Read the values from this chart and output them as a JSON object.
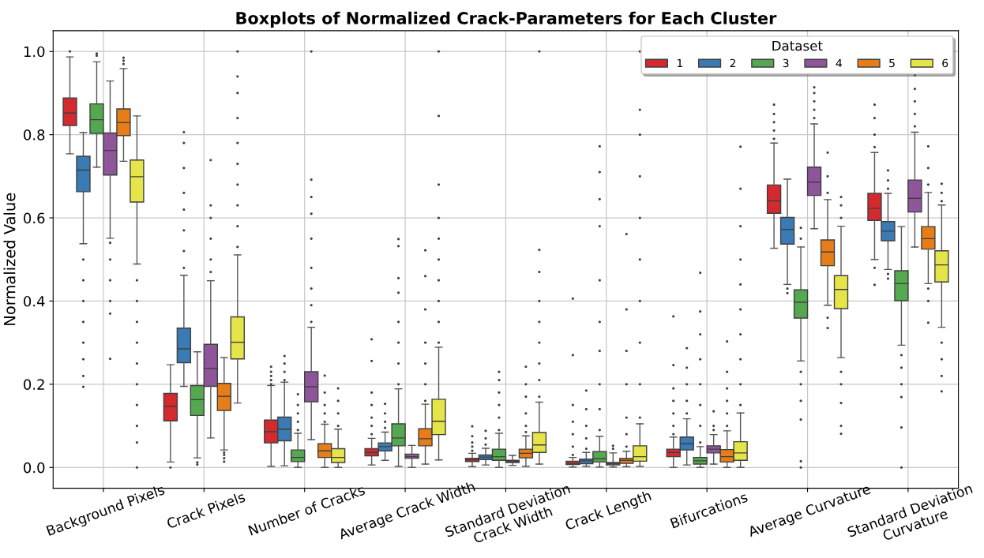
{
  "chart_data": {
    "type": "box",
    "title": "Boxplots of Normalized Crack-Parameters for Each Cluster",
    "ylabel": "Normalized Value",
    "legend_title": "Dataset",
    "categories": [
      "Background Pixels",
      "Crack Pixels",
      "Number of Cracks",
      "Average Crack Width",
      "Standard Deviation\nCrack Width",
      "Crack Length",
      "Bifurcations",
      "Average Curvature",
      "Standard Deviation\nCurvature"
    ],
    "ylim": [
      -0.05,
      1.05
    ],
    "yticks": [
      {
        "value": 0,
        "label": "0.0"
      },
      0.2,
      0.4,
      0.6,
      0.8,
      {
        "value": 1,
        "label": "1.0"
      }
    ],
    "grid": true,
    "legend": "top right",
    "series": [
      {
        "name": "1",
        "color": "#d3292f",
        "boxes": [
          {
            "low": 0.754,
            "q1": 0.822,
            "median": 0.852,
            "q3": 0.888,
            "high": 0.987,
            "outliers": [
              1.0
            ]
          },
          {
            "low": 0.013,
            "q1": 0.112,
            "median": 0.147,
            "q3": 0.178,
            "high": 0.247,
            "outliers": [
              0.0
            ]
          },
          {
            "low": 0.003,
            "q1": 0.059,
            "median": 0.086,
            "q3": 0.114,
            "high": 0.197,
            "outliers": [
              0.2,
              0.21,
              0.22,
              0.23,
              0.242
            ]
          },
          {
            "low": 0.006,
            "q1": 0.028,
            "median": 0.036,
            "q3": 0.045,
            "high": 0.07,
            "outliers": [
              0.08,
              0.1,
              0.12,
              0.15,
              0.18,
              0.256,
              0.308
            ]
          },
          {
            "low": 0.002,
            "q1": 0.014,
            "median": 0.018,
            "q3": 0.022,
            "high": 0.034,
            "outliers": [
              0.04,
              0.05,
              0.06,
              0.075,
              0.099
            ]
          },
          {
            "low": 0.001,
            "q1": 0.007,
            "median": 0.01,
            "q3": 0.015,
            "high": 0.024,
            "outliers": [
              0.03,
              0.05,
              0.08,
              0.11,
              0.15,
              0.27,
              0.406
            ]
          },
          {
            "low": 0.0,
            "q1": 0.026,
            "median": 0.036,
            "q3": 0.044,
            "high": 0.073,
            "outliers": [
              0.08,
              0.1,
              0.13,
              0.16,
              0.19,
              0.246,
              0.363
            ]
          },
          {
            "low": 0.527,
            "q1": 0.611,
            "median": 0.641,
            "q3": 0.679,
            "high": 0.78,
            "outliers": [
              0.79,
              0.81,
              0.83,
              0.85,
              0.872
            ]
          },
          {
            "low": 0.5,
            "q1": 0.594,
            "median": 0.623,
            "q3": 0.659,
            "high": 0.757,
            "outliers": [
              0.439,
              0.48,
              0.77,
              0.8,
              0.84,
              0.872
            ]
          }
        ]
      },
      {
        "name": "2",
        "color": "#3a7ab5",
        "boxes": [
          {
            "low": 0.538,
            "q1": 0.663,
            "median": 0.715,
            "q3": 0.748,
            "high": 0.805,
            "outliers": [
              0.194,
              0.22,
              0.26,
              0.3,
              0.35,
              0.4,
              0.45,
              0.5
            ]
          },
          {
            "low": 0.195,
            "q1": 0.252,
            "median": 0.285,
            "q3": 0.335,
            "high": 0.462,
            "outliers": [
              0.48,
              0.52,
              0.57,
              0.62,
              0.66,
              0.72,
              0.78,
              0.806
            ]
          },
          {
            "low": 0.004,
            "q1": 0.064,
            "median": 0.092,
            "q3": 0.121,
            "high": 0.205,
            "outliers": [
              0.21,
              0.23,
              0.25,
              0.268
            ]
          },
          {
            "low": 0.017,
            "q1": 0.04,
            "median": 0.05,
            "q3": 0.059,
            "high": 0.085,
            "outliers": [
              0.095,
              0.11,
              0.13,
              0.153
            ]
          },
          {
            "low": 0.006,
            "q1": 0.019,
            "median": 0.025,
            "q3": 0.03,
            "high": 0.046,
            "outliers": [
              0.055,
              0.07,
              0.088
            ]
          },
          {
            "low": 0.003,
            "q1": 0.009,
            "median": 0.016,
            "q3": 0.02,
            "high": 0.036,
            "outliers": [
              0.045,
              0.07,
              0.1,
              0.14,
              0.185
            ]
          },
          {
            "low": 0.006,
            "q1": 0.042,
            "median": 0.057,
            "q3": 0.073,
            "high": 0.117,
            "outliers": [
              0.13,
              0.16,
              0.2,
              0.24,
              0.287
            ]
          },
          {
            "low": 0.44,
            "q1": 0.537,
            "median": 0.572,
            "q3": 0.601,
            "high": 0.693,
            "outliers": [
              0.419,
              0.43
            ]
          },
          {
            "low": 0.476,
            "q1": 0.545,
            "median": 0.568,
            "q3": 0.591,
            "high": 0.659,
            "outliers": [
              0.454,
              0.465,
              0.67,
              0.69,
              0.714
            ]
          }
        ]
      },
      {
        "name": "3",
        "color": "#54a84f",
        "boxes": [
          {
            "low": 0.722,
            "q1": 0.803,
            "median": 0.836,
            "q3": 0.874,
            "high": 0.975,
            "outliers": [
              0.99,
              0.995
            ]
          },
          {
            "low": 0.023,
            "q1": 0.125,
            "median": 0.163,
            "q3": 0.197,
            "high": 0.278,
            "outliers": [
              0.007,
              0.012
            ]
          },
          {
            "low": 0.0,
            "q1": 0.014,
            "median": 0.024,
            "q3": 0.042,
            "high": 0.082,
            "outliers": [
              0.09,
              0.11,
              0.13,
              0.15,
              0.176
            ]
          },
          {
            "low": 0.003,
            "q1": 0.052,
            "median": 0.071,
            "q3": 0.105,
            "high": 0.189,
            "outliers": [
              0.2,
              0.25,
              0.3,
              0.35,
              0.42,
              0.455,
              0.532,
              0.549
            ]
          },
          {
            "low": 0.0,
            "q1": 0.017,
            "median": 0.026,
            "q3": 0.044,
            "high": 0.082,
            "outliers": [
              0.09,
              0.12,
              0.15,
              0.18,
              0.21,
              0.23
            ]
          },
          {
            "low": 0.001,
            "q1": 0.013,
            "median": 0.021,
            "q3": 0.038,
            "high": 0.075,
            "outliers": [
              0.09,
              0.14,
              0.2,
              0.28,
              0.35,
              0.45,
              0.58,
              0.645,
              0.71,
              0.772
            ]
          },
          {
            "low": 0.0,
            "q1": 0.008,
            "median": 0.016,
            "q3": 0.024,
            "high": 0.05,
            "outliers": [
              0.06,
              0.1,
              0.15,
              0.2,
              0.26,
              0.32,
              0.375,
              0.468
            ]
          },
          {
            "low": 0.256,
            "q1": 0.359,
            "median": 0.397,
            "q3": 0.427,
            "high": 0.53,
            "outliers": [
              0.0,
              0.015,
              0.115,
              0.16,
              0.2,
              0.23,
              0.55,
              0.576
            ]
          },
          {
            "low": 0.294,
            "q1": 0.401,
            "median": 0.442,
            "q3": 0.473,
            "high": 0.579,
            "outliers": [
              0.0,
              0.096,
              0.169,
              0.2,
              0.24,
              0.27
            ]
          }
        ]
      },
      {
        "name": "4",
        "color": "#8f559b",
        "boxes": [
          {
            "low": 0.551,
            "q1": 0.703,
            "median": 0.762,
            "q3": 0.804,
            "high": 0.929,
            "outliers": [
              0.261,
              0.37,
              0.4,
              0.45,
              0.5,
              0.54
            ]
          },
          {
            "low": 0.071,
            "q1": 0.195,
            "median": 0.238,
            "q3": 0.296,
            "high": 0.449,
            "outliers": [
              0.47,
              0.5,
              0.55,
              0.6,
              0.63,
              0.739
            ]
          },
          {
            "low": 0.067,
            "q1": 0.158,
            "median": 0.194,
            "q3": 0.23,
            "high": 0.337,
            "outliers": [
              0.35,
              0.39,
              0.43,
              0.48,
              0.55,
              0.61,
              0.65,
              0.692,
              1.0
            ]
          },
          {
            "low": 0.0,
            "q1": 0.022,
            "median": 0.026,
            "q3": 0.032,
            "high": 0.053
          },
          {
            "low": 0.005,
            "q1": 0.012,
            "median": 0.015,
            "q3": 0.017,
            "high": 0.029
          },
          {
            "low": 0.001,
            "q1": 0.006,
            "median": 0.009,
            "q3": 0.012,
            "high": 0.035,
            "outliers": [
              0.045,
              0.052
            ]
          },
          {
            "low": 0.008,
            "q1": 0.035,
            "median": 0.044,
            "q3": 0.052,
            "high": 0.079,
            "outliers": [
              0.09,
              0.1,
              0.135
            ]
          },
          {
            "low": 0.574,
            "q1": 0.654,
            "median": 0.686,
            "q3": 0.722,
            "high": 0.826,
            "outliers": [
              0.84,
              0.86,
              0.88,
              0.9,
              0.914
            ]
          },
          {
            "low": 0.53,
            "q1": 0.614,
            "median": 0.647,
            "q3": 0.691,
            "high": 0.806,
            "outliers": [
              0.82,
              0.85,
              0.88,
              0.91,
              0.943
            ]
          }
        ]
      },
      {
        "name": "5",
        "color": "#e67d19",
        "boxes": [
          {
            "low": 0.736,
            "q1": 0.798,
            "median": 0.829,
            "q3": 0.862,
            "high": 0.959,
            "outliers": [
              0.97,
              0.978,
              0.985
            ]
          },
          {
            "low": 0.042,
            "q1": 0.137,
            "median": 0.171,
            "q3": 0.202,
            "high": 0.264,
            "outliers": [
              0.014,
              0.022,
              0.03,
              0.036
            ]
          },
          {
            "low": 0.0,
            "q1": 0.024,
            "median": 0.04,
            "q3": 0.057,
            "high": 0.104,
            "outliers": [
              0.11,
              0.13,
              0.15,
              0.18,
              0.221
            ]
          },
          {
            "low": 0.008,
            "q1": 0.052,
            "median": 0.069,
            "q3": 0.093,
            "high": 0.152,
            "outliers": [
              0.16,
              0.2,
              0.25,
              0.3,
              0.38,
              0.46,
              0.522
            ]
          },
          {
            "low": 0.003,
            "q1": 0.023,
            "median": 0.034,
            "q3": 0.044,
            "high": 0.076,
            "outliers": [
              0.085,
              0.1,
              0.13,
              0.17,
              0.2,
              0.242
            ]
          },
          {
            "low": 0.002,
            "q1": 0.01,
            "median": 0.017,
            "q3": 0.022,
            "high": 0.039,
            "outliers": [
              0.05,
              0.08,
              0.12,
              0.2,
              0.28,
              0.38,
              0.561
            ]
          },
          {
            "low": 0.0,
            "q1": 0.013,
            "median": 0.026,
            "q3": 0.043,
            "high": 0.088,
            "outliers": [
              0.1,
              0.13,
              0.16,
              0.19,
              0.23,
              0.303
            ]
          },
          {
            "low": 0.39,
            "q1": 0.485,
            "median": 0.518,
            "q3": 0.547,
            "high": 0.644,
            "outliers": [
              0.335,
              0.36,
              0.66,
              0.7,
              0.757
            ]
          },
          {
            "low": 0.442,
            "q1": 0.525,
            "median": 0.55,
            "q3": 0.579,
            "high": 0.661,
            "outliers": [
              0.348,
              0.4,
              0.43,
              0.68,
              0.72,
              0.772
            ]
          }
        ]
      },
      {
        "name": "6",
        "color": "#e5e54a",
        "boxes": [
          {
            "low": 0.489,
            "q1": 0.638,
            "median": 0.699,
            "q3": 0.739,
            "high": 0.845,
            "outliers": [
              0.0,
              0.06,
              0.1,
              0.15,
              0.2,
              0.25,
              0.3,
              0.35,
              0.4,
              0.45
            ]
          },
          {
            "low": 0.155,
            "q1": 0.261,
            "median": 0.301,
            "q3": 0.362,
            "high": 0.511,
            "outliers": [
              0.53,
              0.58,
              0.63,
              0.68,
              0.73,
              0.78,
              0.84,
              0.9,
              0.94,
              1.0
            ]
          },
          {
            "low": 0.0,
            "q1": 0.012,
            "median": 0.024,
            "q3": 0.045,
            "high": 0.092,
            "outliers": [
              0.1,
              0.13,
              0.16,
              0.19
            ]
          },
          {
            "low": 0.018,
            "q1": 0.079,
            "median": 0.111,
            "q3": 0.164,
            "high": 0.289,
            "outliers": [
              0.3,
              0.35,
              0.4,
              0.45,
              0.5,
              0.55,
              0.6,
              0.68,
              0.845,
              1.0
            ]
          },
          {
            "low": 0.008,
            "q1": 0.036,
            "median": 0.054,
            "q3": 0.084,
            "high": 0.157,
            "outliers": [
              0.17,
              0.21,
              0.25,
              0.3,
              0.35,
              0.4,
              0.47,
              0.523,
              1.0
            ]
          },
          {
            "low": 0.003,
            "q1": 0.015,
            "median": 0.026,
            "q3": 0.052,
            "high": 0.105,
            "outliers": [
              0.12,
              0.2,
              0.3,
              0.4,
              0.5,
              0.6,
              0.7,
              0.8,
              0.86,
              1.0
            ]
          },
          {
            "low": 0.0,
            "q1": 0.017,
            "median": 0.035,
            "q3": 0.062,
            "high": 0.131,
            "outliers": [
              0.15,
              0.2,
              0.26,
              0.32,
              0.38,
              0.44,
              0.5,
              0.58,
              0.67,
              0.771
            ]
          },
          {
            "low": 0.264,
            "q1": 0.382,
            "median": 0.428,
            "q3": 0.461,
            "high": 0.58,
            "outliers": [
              0.081,
              0.1,
              0.155,
              0.2,
              0.23,
              0.6,
              0.63,
              0.65
            ]
          },
          {
            "low": 0.337,
            "q1": 0.446,
            "median": 0.487,
            "q3": 0.521,
            "high": 0.631,
            "outliers": [
              0.183,
              0.22,
              0.26,
              0.3,
              0.64,
              0.66,
              0.682
            ]
          }
        ]
      }
    ]
  }
}
